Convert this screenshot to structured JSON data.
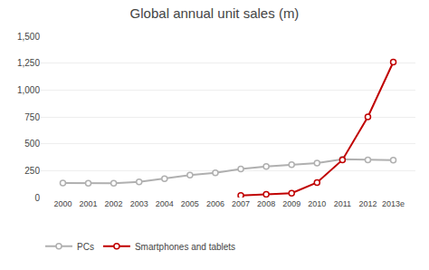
{
  "chart_data": {
    "type": "line",
    "title": "Global annual unit sales (m)",
    "categories": [
      "2000",
      "2001",
      "2002",
      "2003",
      "2004",
      "2005",
      "2006",
      "2007",
      "2008",
      "2009",
      "2010",
      "2011",
      "2012",
      "2013e"
    ],
    "series": [
      {
        "name": "PCs",
        "color": "#b0b0b0",
        "marker": "circle",
        "values": [
          135,
          132,
          133,
          145,
          175,
          208,
          230,
          265,
          288,
          305,
          320,
          355,
          350,
          348
        ]
      },
      {
        "name": "Smartphones and tablets",
        "color": "#c00000",
        "marker": "circle",
        "values": [
          null,
          null,
          null,
          null,
          null,
          null,
          null,
          18,
          30,
          40,
          140,
          350,
          750,
          1260
        ]
      }
    ],
    "ylim": [
      0,
      1500
    ],
    "yticks": [
      0,
      250,
      500,
      750,
      {
        "value": 1000,
        "label": "1,000"
      },
      {
        "value": 1250,
        "label": "1,250"
      },
      {
        "value": 1500,
        "label": "1,500"
      }
    ],
    "grid": true,
    "legend": "bottom"
  }
}
